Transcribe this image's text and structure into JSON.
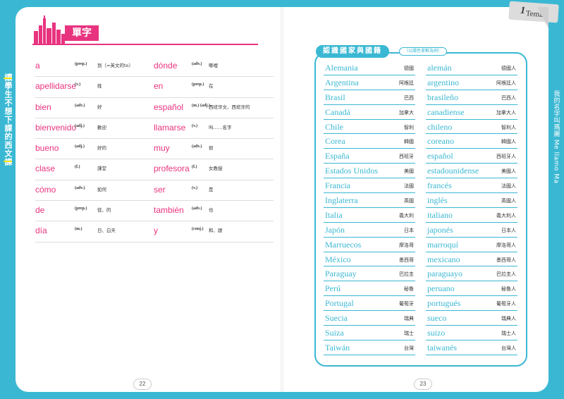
{
  "left_page": {
    "side_tab": "讓學生不想下課的西文課",
    "vocab_title": "單字",
    "page_number": "22",
    "vocab_col1": [
      {
        "word": "a",
        "pos": "(prep.)",
        "meaning": "到（=英文的to）"
      },
      {
        "word": "apellidarse",
        "pos": "(v.)",
        "meaning": "姓"
      },
      {
        "word": "bien",
        "pos": "(adv.)",
        "meaning": "好"
      },
      {
        "word": "bienvenido",
        "pos": "(adj.)",
        "meaning": "歡迎"
      },
      {
        "word": "bueno",
        "pos": "(adj.)",
        "meaning": "好的"
      },
      {
        "word": "clase",
        "pos": "(f.)",
        "meaning": "課堂"
      },
      {
        "word": "cómo",
        "pos": "(adv.)",
        "meaning": "如何"
      },
      {
        "word": "de",
        "pos": "(prep.)",
        "meaning": "從、的"
      },
      {
        "word": "día",
        "pos": "(m.)",
        "meaning": "日、白天"
      }
    ],
    "vocab_col2": [
      {
        "word": "dónde",
        "pos": "(adv.)",
        "meaning": "哪裡"
      },
      {
        "word": "en",
        "pos": "(prep.)",
        "meaning": "在"
      },
      {
        "word": "español",
        "pos": "(m.) (adj.)",
        "meaning": "西班牙文、西班牙的"
      },
      {
        "word": "llamarse",
        "pos": "(v.)",
        "meaning": "叫……名字"
      },
      {
        "word": "muy",
        "pos": "(adv.)",
        "meaning": "很"
      },
      {
        "word": "profesora",
        "pos": "(f.)",
        "meaning": "女教授"
      },
      {
        "word": "ser",
        "pos": "(v.)",
        "meaning": "是"
      },
      {
        "word": "también",
        "pos": "(adv.)",
        "meaning": "也"
      },
      {
        "word": "y",
        "pos": "(conj.)",
        "meaning": "和、跟"
      }
    ]
  },
  "right_page": {
    "tema_label": "Tema",
    "tema_number": "1",
    "side_tab": "我的名字叫瑪麗 Me llamo Ma",
    "page_number": "23",
    "box_title": "認識國家與國籍",
    "box_note": "（以陽性單數為例）",
    "countries": [
      {
        "es": "Alemania",
        "zh": "德國"
      },
      {
        "es": "Argentina",
        "zh": "阿根廷"
      },
      {
        "es": "Brasil",
        "zh": "巴西"
      },
      {
        "es": "Canadá",
        "zh": "加拿大"
      },
      {
        "es": "Chile",
        "zh": "智利"
      },
      {
        "es": "Corea",
        "zh": "韓國"
      },
      {
        "es": "España",
        "zh": "西班牙"
      },
      {
        "es": "Estados Unidos",
        "zh": "美國"
      },
      {
        "es": "Francia",
        "zh": "法國"
      },
      {
        "es": "Inglaterra",
        "zh": "英國"
      },
      {
        "es": "Italia",
        "zh": "義大利"
      },
      {
        "es": "Japón",
        "zh": "日本"
      },
      {
        "es": "Marruecos",
        "zh": "摩洛哥"
      },
      {
        "es": "México",
        "zh": "墨西哥"
      },
      {
        "es": "Paraguay",
        "zh": "巴拉圭"
      },
      {
        "es": "Perú",
        "zh": "秘魯"
      },
      {
        "es": "Portugal",
        "zh": "葡萄牙"
      },
      {
        "es": "Suecia",
        "zh": "瑞典"
      },
      {
        "es": "Suiza",
        "zh": "瑞士"
      },
      {
        "es": "Taiwán",
        "zh": "台灣"
      }
    ],
    "nationalities": [
      {
        "es": "alemán",
        "zh": "德國人"
      },
      {
        "es": "argentino",
        "zh": "阿根廷人"
      },
      {
        "es": "brasileño",
        "zh": "巴西人"
      },
      {
        "es": "canadiense",
        "zh": "加拿大人"
      },
      {
        "es": "chileno",
        "zh": "智利人"
      },
      {
        "es": "coreano",
        "zh": "韓國人"
      },
      {
        "es": "español",
        "zh": "西班牙人"
      },
      {
        "es": "estadounidense",
        "zh": "美國人"
      },
      {
        "es": "francés",
        "zh": "法國人"
      },
      {
        "es": "inglés",
        "zh": "英國人"
      },
      {
        "es": "italiano",
        "zh": "義大利人"
      },
      {
        "es": "japonés",
        "zh": "日本人"
      },
      {
        "es": "marroquí",
        "zh": "摩洛哥人"
      },
      {
        "es": "mexicano",
        "zh": "墨西哥人"
      },
      {
        "es": "paraguayo",
        "zh": "巴拉圭人"
      },
      {
        "es": "peruano",
        "zh": "秘魯人"
      },
      {
        "es": "portugués",
        "zh": "葡萄牙人"
      },
      {
        "es": "sueco",
        "zh": "瑞典人"
      },
      {
        "es": "suizo",
        "zh": "瑞士人"
      },
      {
        "es": "taiwanés",
        "zh": "台灣人"
      }
    ]
  },
  "colors": {
    "accent_pink": "#e8337f",
    "accent_cyan": "#3ab8d3",
    "accent_yellow": "#f5e400"
  }
}
